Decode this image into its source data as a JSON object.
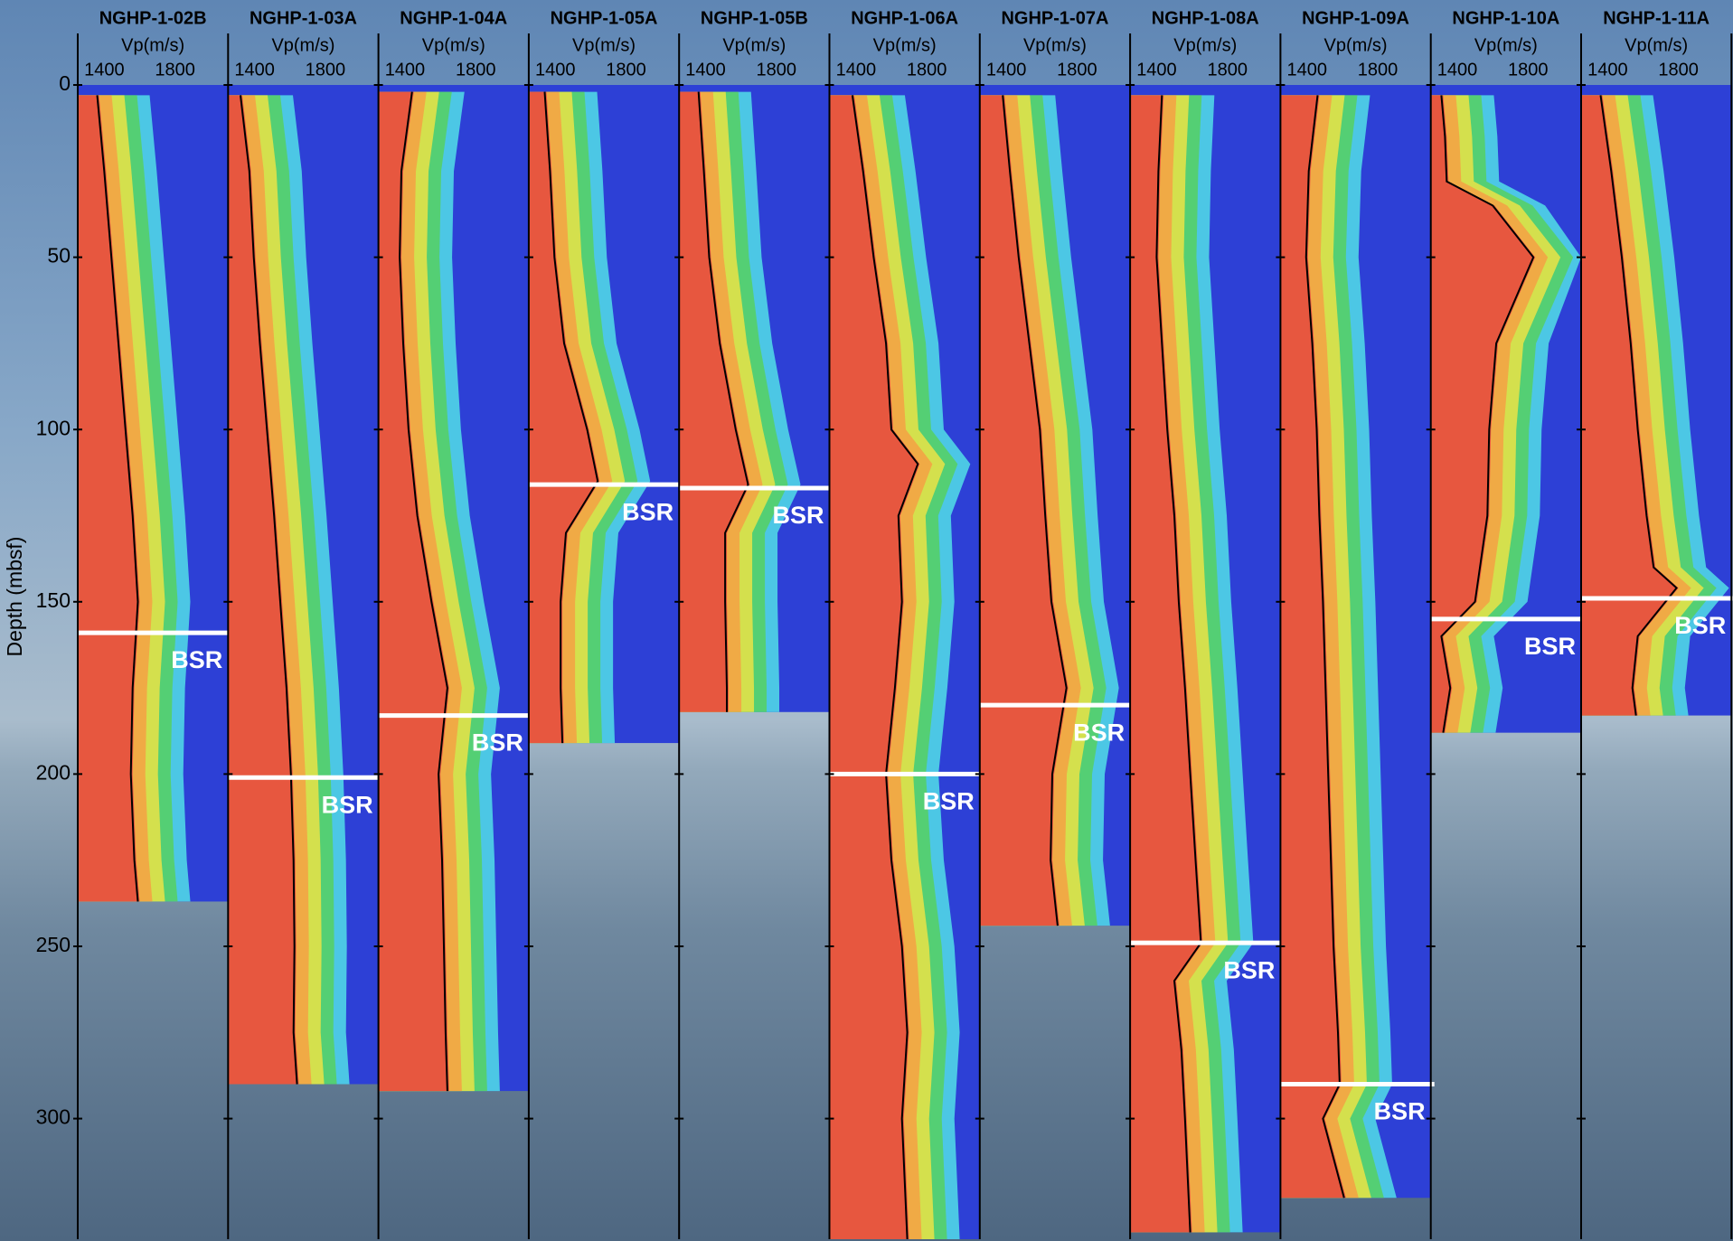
{
  "chart_data": {
    "type": "well-log",
    "ylabel": "Depth (mbsf)",
    "ylim": [
      0,
      335
    ],
    "yticks": [
      0,
      50,
      100,
      150,
      200,
      250,
      300
    ],
    "xlabel": "Vp(m/s)",
    "xlim": [
      1250,
      2100
    ],
    "xticks": [
      1400,
      1800
    ],
    "annotation": "BSR",
    "line_color": "#000000",
    "series": [
      {
        "name": "NGHP-1-02B",
        "bsr": 159,
        "depths": [
          3,
          25,
          50,
          75,
          100,
          125,
          150,
          175,
          200,
          225,
          237
        ],
        "values": [
          1360,
          1400,
          1440,
          1480,
          1520,
          1560,
          1590,
          1560,
          1550,
          1570,
          1590
        ]
      },
      {
        "name": "NGHP-1-03A",
        "bsr": 201,
        "depths": [
          3,
          25,
          50,
          75,
          100,
          125,
          150,
          175,
          200,
          225,
          250,
          275,
          290
        ],
        "values": [
          1320,
          1370,
          1395,
          1430,
          1470,
          1510,
          1545,
          1580,
          1605,
          1620,
          1625,
          1620,
          1640
        ]
      },
      {
        "name": "NGHP-1-04A",
        "bsr": 183,
        "depths": [
          2,
          25,
          50,
          75,
          100,
          125,
          150,
          175,
          200,
          225,
          250,
          275,
          292
        ],
        "values": [
          1440,
          1380,
          1370,
          1390,
          1420,
          1470,
          1550,
          1640,
          1590,
          1610,
          1620,
          1630,
          1640
        ]
      },
      {
        "name": "NGHP-1-05A",
        "bsr": 116,
        "depths": [
          2,
          25,
          50,
          75,
          100,
          115,
          130,
          150,
          175,
          191
        ],
        "values": [
          1340,
          1370,
          1395,
          1450,
          1580,
          1640,
          1460,
          1430,
          1430,
          1440
        ]
      },
      {
        "name": "NGHP-1-05B",
        "bsr": 117,
        "depths": [
          2,
          25,
          50,
          75,
          100,
          116,
          130,
          150,
          175,
          182
        ],
        "values": [
          1360,
          1390,
          1420,
          1480,
          1570,
          1640,
          1510,
          1510,
          1520,
          1520
        ]
      },
      {
        "name": "NGHP-1-06A",
        "bsr": 200,
        "depths": [
          3,
          25,
          50,
          75,
          100,
          110,
          125,
          150,
          175,
          200,
          225,
          250,
          275,
          300,
          335
        ],
        "values": [
          1380,
          1440,
          1500,
          1570,
          1600,
          1750,
          1640,
          1660,
          1620,
          1570,
          1600,
          1660,
          1690,
          1660,
          1690
        ]
      },
      {
        "name": "NGHP-1-07A",
        "bsr": 180,
        "depths": [
          3,
          25,
          50,
          75,
          100,
          125,
          150,
          175,
          200,
          225,
          244
        ],
        "values": [
          1380,
          1420,
          1470,
          1530,
          1590,
          1620,
          1655,
          1740,
          1660,
          1650,
          1690
        ]
      },
      {
        "name": "NGHP-1-08A",
        "bsr": 249,
        "depths": [
          3,
          25,
          50,
          75,
          100,
          125,
          150,
          175,
          200,
          225,
          249,
          260,
          280,
          300,
          333
        ],
        "values": [
          1430,
          1410,
          1400,
          1430,
          1460,
          1500,
          1525,
          1560,
          1590,
          1620,
          1650,
          1500,
          1540,
          1560,
          1590
        ]
      },
      {
        "name": "NGHP-1-09A",
        "bsr": 290,
        "depths": [
          3,
          25,
          50,
          75,
          100,
          125,
          150,
          175,
          200,
          225,
          250,
          275,
          290,
          300,
          323
        ],
        "values": [
          1460,
          1410,
          1395,
          1430,
          1455,
          1470,
          1490,
          1505,
          1520,
          1535,
          1550,
          1575,
          1585,
          1490,
          1610
        ]
      },
      {
        "name": "NGHP-1-10A",
        "bsr": 155,
        "depths": [
          3,
          15,
          28,
          35,
          50,
          75,
          100,
          125,
          150,
          160,
          175,
          188
        ],
        "values": [
          1310,
          1330,
          1340,
          1600,
          1830,
          1620,
          1580,
          1570,
          1500,
          1310,
          1360,
          1320
        ]
      },
      {
        "name": "NGHP-1-11A",
        "bsr": 149,
        "depths": [
          3,
          25,
          50,
          75,
          100,
          125,
          140,
          146,
          160,
          175,
          183
        ],
        "values": [
          1360,
          1420,
          1480,
          1530,
          1570,
          1620,
          1660,
          1790,
          1570,
          1540,
          1560
        ]
      }
    ]
  }
}
